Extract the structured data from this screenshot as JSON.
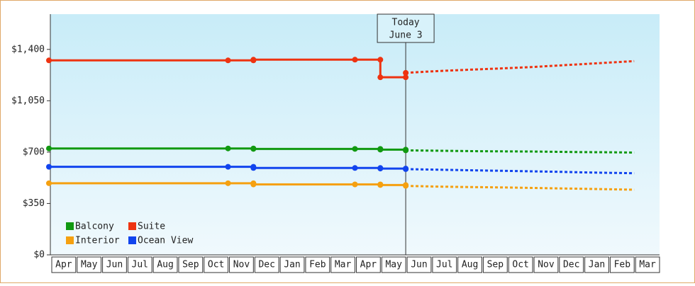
{
  "chart_data": {
    "type": "line",
    "categories": [
      "Apr",
      "May",
      "Jun",
      "Jul",
      "Aug",
      "Sep",
      "Oct",
      "Nov",
      "Dec",
      "Jan",
      "Feb",
      "Mar",
      "Apr",
      "May",
      "Jun",
      "Jul",
      "Aug",
      "Sep",
      "Oct",
      "Nov",
      "Dec",
      "Jan",
      "Feb",
      "Mar"
    ],
    "annotation": [
      "Today",
      "June 3"
    ],
    "ylim": [
      0,
      1640
    ],
    "yticks": [
      {
        "value": 0,
        "label": "$0"
      },
      {
        "value": 350,
        "label": "$350"
      },
      {
        "value": 700,
        "label": "$700"
      },
      {
        "value": 1050,
        "label": "$1,050"
      },
      {
        "value": 1400,
        "label": "$1,400"
      }
    ],
    "series": [
      {
        "name": "Balcony",
        "color": "#119911",
        "values": [
          725,
          725,
          725,
          725,
          725,
          725,
          725,
          725,
          722,
          722,
          722,
          722,
          722,
          717,
          712,
          null,
          null,
          null,
          null,
          null,
          null,
          null,
          null,
          null
        ],
        "projected": [
          null,
          null,
          null,
          null,
          null,
          null,
          null,
          null,
          null,
          null,
          null,
          null,
          null,
          null,
          712,
          710,
          708,
          706,
          705,
          704,
          702,
          700,
          699,
          697
        ]
      },
      {
        "name": "Suite",
        "color": "#ee3311",
        "values": [
          1325,
          1325,
          1325,
          1325,
          1325,
          1325,
          1325,
          1325,
          1330,
          1330,
          1330,
          1330,
          1330,
          1210,
          1240,
          null,
          null,
          null,
          null,
          null,
          null,
          null,
          null,
          null
        ],
        "projected": [
          null,
          null,
          null,
          null,
          null,
          null,
          null,
          null,
          null,
          null,
          null,
          null,
          null,
          null,
          1240,
          1250,
          1258,
          1265,
          1272,
          1280,
          1290,
          1300,
          1310,
          1320
        ]
      },
      {
        "name": "Interior",
        "color": "#f5a010",
        "values": [
          488,
          488,
          488,
          488,
          488,
          488,
          488,
          488,
          480,
          480,
          480,
          480,
          480,
          476,
          470,
          null,
          null,
          null,
          null,
          null,
          null,
          null,
          null,
          null
        ],
        "projected": [
          null,
          null,
          null,
          null,
          null,
          null,
          null,
          null,
          null,
          null,
          null,
          null,
          null,
          null,
          470,
          466,
          463,
          461,
          459,
          456,
          453,
          450,
          447,
          444
        ]
      },
      {
        "name": "Ocean View",
        "color": "#1144ee",
        "values": [
          600,
          600,
          600,
          600,
          600,
          600,
          600,
          600,
          592,
          592,
          592,
          592,
          592,
          588,
          584,
          null,
          null,
          null,
          null,
          null,
          null,
          null,
          null,
          null
        ],
        "projected": [
          null,
          null,
          null,
          null,
          null,
          null,
          null,
          null,
          null,
          null,
          null,
          null,
          null,
          null,
          584,
          581,
          578,
          575,
          572,
          569,
          566,
          562,
          559,
          556
        ]
      }
    ]
  }
}
